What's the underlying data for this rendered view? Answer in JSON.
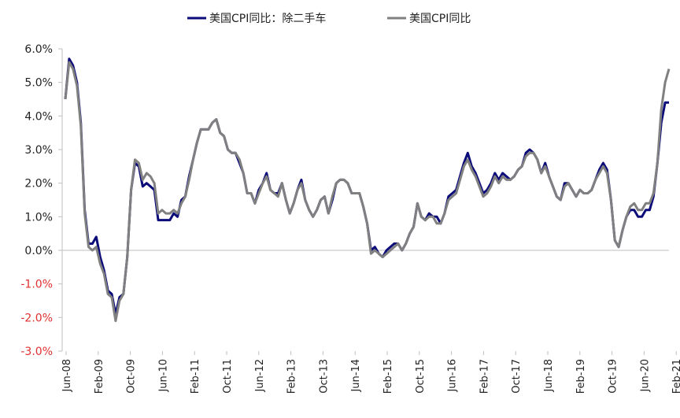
{
  "chart_data": {
    "type": "line",
    "ylim": [
      -3.0,
      6.0
    ],
    "y_ticks": [
      "6.0%",
      "5.0%",
      "4.0%",
      "3.0%",
      "2.0%",
      "1.0%",
      "0.0%",
      "-1.0%",
      "-2.0%",
      "-3.0%"
    ],
    "y_tick_colors": [
      "#222222",
      "#222222",
      "#222222",
      "#222222",
      "#222222",
      "#222222",
      "#222222",
      "#e03030",
      "#e03030",
      "#e03030"
    ],
    "x_ticks": [
      "Jun-08",
      "Feb-09",
      "Oct-09",
      "Jun-10",
      "Feb-11",
      "Oct-11",
      "Jun-12",
      "Feb-13",
      "Oct-13",
      "Jun-14",
      "Feb-15",
      "Oct-15",
      "Jun-16",
      "Feb-17",
      "Oct-17",
      "Jun-18",
      "Feb-19",
      "Oct-19",
      "Jun-20",
      "Feb-21"
    ],
    "legend_position": "top-center",
    "grid": false,
    "series": [
      {
        "name": "美国CPI同比：除二手车",
        "color": "#0b0b7a",
        "values": [
          4.5,
          5.7,
          5.5,
          5.0,
          3.8,
          1.2,
          0.2,
          0.2,
          0.4,
          -0.2,
          -0.6,
          -1.2,
          -1.3,
          -1.9,
          -1.4,
          -1.3,
          -0.2,
          1.8,
          2.6,
          2.5,
          1.9,
          2.0,
          1.9,
          1.8,
          0.9,
          0.9,
          0.9,
          0.9,
          1.1,
          1.0,
          1.5,
          1.6,
          2.2,
          2.7,
          3.2,
          3.6,
          3.6,
          3.6,
          3.8,
          3.9,
          3.5,
          3.4,
          3.0,
          2.9,
          2.9,
          2.6,
          2.3,
          1.7,
          1.7,
          1.4,
          1.8,
          2.0,
          2.3,
          1.8,
          1.7,
          1.7,
          2.0,
          1.5,
          1.1,
          1.4,
          1.8,
          2.1,
          1.5,
          1.2,
          1.0,
          1.2,
          1.5,
          1.6,
          1.1,
          1.5,
          2.0,
          2.1,
          2.1,
          2.0,
          1.7,
          1.7,
          1.7,
          1.3,
          0.8,
          0.0,
          0.1,
          -0.1,
          -0.2,
          0.0,
          0.1,
          0.2,
          0.2,
          0.0,
          0.2,
          0.5,
          0.7,
          1.4,
          1.0,
          0.9,
          1.1,
          1.0,
          1.0,
          0.8,
          1.1,
          1.6,
          1.7,
          1.8,
          2.2,
          2.6,
          2.9,
          2.5,
          2.3,
          2.0,
          1.7,
          1.8,
          2.0,
          2.3,
          2.1,
          2.3,
          2.2,
          2.1,
          2.2,
          2.4,
          2.5,
          2.9,
          3.0,
          2.9,
          2.7,
          2.3,
          2.6,
          2.2,
          1.9,
          1.6,
          1.5,
          2.0,
          2.0,
          1.8,
          1.6,
          1.8,
          1.7,
          1.7,
          1.8,
          2.1,
          2.4,
          2.6,
          2.4,
          1.5,
          0.3,
          0.1,
          0.6,
          1.0,
          1.2,
          1.2,
          1.0,
          1.0,
          1.2,
          1.2,
          1.6,
          2.6,
          3.8,
          4.4,
          4.4
        ]
      },
      {
        "name": "美国CPI同比",
        "color": "#808080",
        "values": [
          4.5,
          5.6,
          5.4,
          4.9,
          3.7,
          1.1,
          0.1,
          0.0,
          0.1,
          -0.4,
          -0.7,
          -1.3,
          -1.4,
          -2.1,
          -1.5,
          -1.3,
          -0.2,
          1.8,
          2.7,
          2.6,
          2.1,
          2.3,
          2.2,
          2.0,
          1.1,
          1.2,
          1.1,
          1.1,
          1.2,
          1.1,
          1.4,
          1.6,
          2.1,
          2.7,
          3.2,
          3.6,
          3.6,
          3.6,
          3.8,
          3.9,
          3.5,
          3.4,
          3.0,
          2.9,
          2.9,
          2.7,
          2.3,
          1.7,
          1.7,
          1.4,
          1.7,
          2.0,
          2.2,
          1.8,
          1.7,
          1.6,
          2.0,
          1.5,
          1.1,
          1.4,
          1.8,
          2.0,
          1.5,
          1.2,
          1.0,
          1.2,
          1.5,
          1.6,
          1.1,
          1.6,
          2.0,
          2.1,
          2.1,
          2.0,
          1.7,
          1.7,
          1.7,
          1.3,
          0.8,
          -0.1,
          0.0,
          -0.1,
          -0.2,
          -0.1,
          0.0,
          0.1,
          0.2,
          0.0,
          0.2,
          0.5,
          0.7,
          1.4,
          1.0,
          0.9,
          1.0,
          1.0,
          0.8,
          0.8,
          1.1,
          1.5,
          1.6,
          1.7,
          2.1,
          2.5,
          2.7,
          2.4,
          2.2,
          1.9,
          1.6,
          1.7,
          1.9,
          2.2,
          2.0,
          2.2,
          2.1,
          2.1,
          2.2,
          2.4,
          2.5,
          2.8,
          2.9,
          2.9,
          2.7,
          2.3,
          2.5,
          2.2,
          1.9,
          1.6,
          1.5,
          1.9,
          2.0,
          1.8,
          1.6,
          1.8,
          1.7,
          1.7,
          1.8,
          2.1,
          2.3,
          2.5,
          2.3,
          1.5,
          0.3,
          0.1,
          0.6,
          1.0,
          1.3,
          1.4,
          1.2,
          1.2,
          1.4,
          1.4,
          1.7,
          2.6,
          4.2,
          5.0,
          5.4
        ]
      }
    ]
  }
}
